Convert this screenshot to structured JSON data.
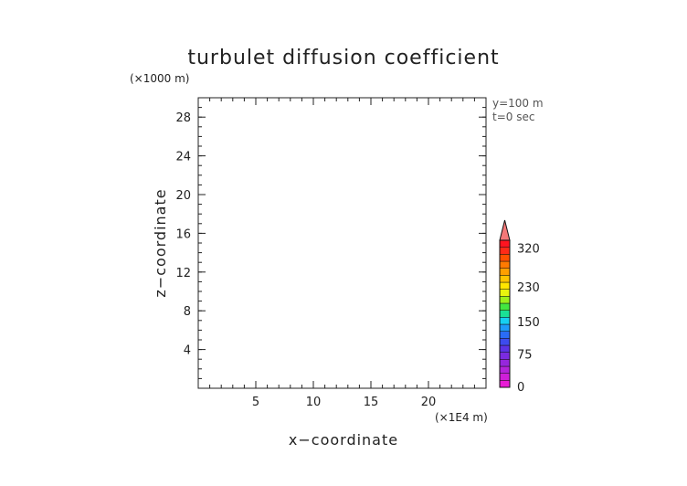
{
  "chart_data": {
    "type": "heatmap",
    "title": "turbulet diffusion coefficient",
    "xlabel": "x−coordinate",
    "ylabel": "z−coordinate",
    "x_unit_note": "(×1E4 m)",
    "y_unit_note": "(×1000 m)",
    "annotations": [
      "y=100 m",
      "t=0 sec"
    ],
    "xlim": [
      0,
      25
    ],
    "ylim": [
      0,
      30
    ],
    "x_ticks": [
      5,
      10,
      15,
      20
    ],
    "y_ticks": [
      4,
      8,
      12,
      16,
      20,
      24,
      28
    ],
    "x_tick_labels": [
      "5",
      "10",
      "15",
      "20"
    ],
    "y_tick_labels": [
      "4",
      "8",
      "12",
      "16",
      "20",
      "24",
      "28"
    ],
    "values": [],
    "colorbar": {
      "labels": [
        "0",
        "75",
        "150",
        "230",
        "320"
      ],
      "label_values": [
        0,
        75,
        150,
        230,
        320
      ],
      "max": 340,
      "extend": "max",
      "colors": [
        "#e81bd6",
        "#cf1fd8",
        "#b423da",
        "#9627dc",
        "#7a2be0",
        "#5b33e6",
        "#3d4bee",
        "#2a6cf6",
        "#1e9bfa",
        "#16d0f2",
        "#1ae096",
        "#43e640",
        "#9cf01c",
        "#e8f40e",
        "#ffe600",
        "#ffc400",
        "#ff9f00",
        "#ff7a00",
        "#ff5000",
        "#ff2a18",
        "#ff1420"
      ],
      "extend_color": "#f47878"
    }
  }
}
